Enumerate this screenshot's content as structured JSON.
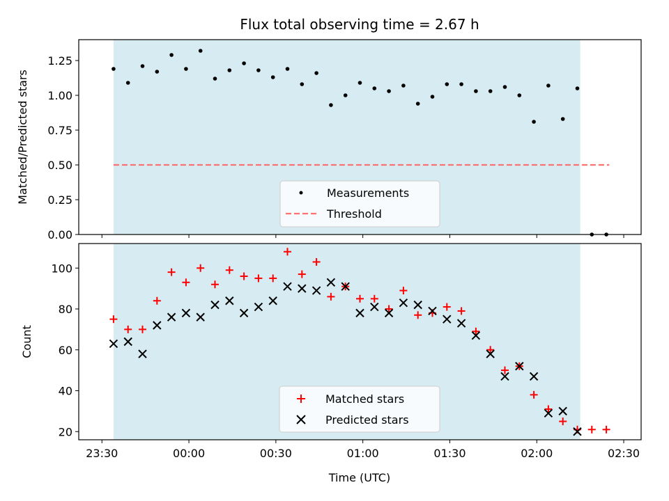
{
  "chart_data": [
    {
      "type": "scatter",
      "title": "Flux total observing time = 2.67 h",
      "ylabel": "Matched/Predicted stars",
      "xlabel": "",
      "ylim": [
        0,
        1.4
      ],
      "yticks": [
        "0.00",
        "0.25",
        "0.50",
        "0.75",
        "1.00",
        "1.25"
      ],
      "shaded_span": {
        "from": "23:34",
        "to": "02:15",
        "color": "#add8e6"
      },
      "threshold": {
        "name": "Threshold",
        "value": 0.5,
        "from": "23:34",
        "to": "02:25",
        "color": "#ff7070"
      },
      "legend": [
        "Measurements",
        "Threshold"
      ],
      "legend_position": "lower center",
      "series": [
        {
          "name": "Measurements",
          "x": [
            "23:34",
            "23:39",
            "23:44",
            "23:49",
            "23:54",
            "23:59",
            "00:04",
            "00:09",
            "00:14",
            "00:19",
            "00:24",
            "00:29",
            "00:34",
            "00:39",
            "00:44",
            "00:49",
            "00:54",
            "00:59",
            "01:04",
            "01:09",
            "01:14",
            "01:19",
            "01:24",
            "01:29",
            "01:34",
            "01:39",
            "01:44",
            "01:49",
            "01:54",
            "01:59",
            "02:04",
            "02:09",
            "02:14",
            "02:19",
            "02:24"
          ],
          "y": [
            1.19,
            1.09,
            1.21,
            1.17,
            1.29,
            1.19,
            1.32,
            1.12,
            1.18,
            1.23,
            1.18,
            1.13,
            1.19,
            1.08,
            1.16,
            0.93,
            1.0,
            1.09,
            1.05,
            1.03,
            1.07,
            0.94,
            0.99,
            1.08,
            1.08,
            1.03,
            1.03,
            1.06,
            1.0,
            0.81,
            1.07,
            0.83,
            1.05,
            0.0,
            0.0
          ]
        }
      ]
    },
    {
      "type": "scatter",
      "title": "",
      "ylabel": "Count",
      "xlabel": "Time (UTC)",
      "ylim": [
        16,
        112
      ],
      "yticks": [
        "20",
        "40",
        "60",
        "80",
        "100"
      ],
      "xticks": [
        "23:30",
        "00:00",
        "00:30",
        "01:00",
        "01:30",
        "02:00",
        "02:30"
      ],
      "shaded_span": {
        "from": "23:34",
        "to": "02:15",
        "color": "#add8e6"
      },
      "legend": [
        "Matched stars",
        "Predicted stars"
      ],
      "legend_position": "lower center",
      "series": [
        {
          "name": "Matched stars",
          "marker": "+",
          "color": "#ff0000",
          "x": [
            "23:34",
            "23:39",
            "23:44",
            "23:49",
            "23:54",
            "23:59",
            "00:04",
            "00:09",
            "00:14",
            "00:19",
            "00:24",
            "00:29",
            "00:34",
            "00:39",
            "00:44",
            "00:49",
            "00:54",
            "00:59",
            "01:04",
            "01:09",
            "01:14",
            "01:19",
            "01:24",
            "01:29",
            "01:34",
            "01:39",
            "01:44",
            "01:49",
            "01:54",
            "01:59",
            "02:04",
            "02:09",
            "02:14",
            "02:19",
            "02:24"
          ],
          "y": [
            75,
            70,
            70,
            84,
            98,
            93,
            100,
            92,
            99,
            96,
            95,
            95,
            108,
            97,
            103,
            86,
            91,
            85,
            85,
            80,
            89,
            77,
            78,
            81,
            79,
            69,
            60,
            50,
            52,
            38,
            31,
            25,
            21,
            21,
            21
          ]
        },
        {
          "name": "Predicted stars",
          "marker": "x",
          "color": "#000000",
          "x": [
            "23:34",
            "23:39",
            "23:44",
            "23:49",
            "23:54",
            "23:59",
            "00:04",
            "00:09",
            "00:14",
            "00:19",
            "00:24",
            "00:29",
            "00:34",
            "00:39",
            "00:44",
            "00:49",
            "00:54",
            "00:59",
            "01:04",
            "01:09",
            "01:14",
            "01:19",
            "01:24",
            "01:29",
            "01:34",
            "01:39",
            "01:44",
            "01:49",
            "01:54",
            "01:59",
            "02:04",
            "02:09",
            "02:14"
          ],
          "y": [
            63,
            64,
            58,
            72,
            76,
            78,
            76,
            82,
            84,
            78,
            81,
            84,
            91,
            90,
            89,
            93,
            91,
            78,
            81,
            78,
            83,
            82,
            79,
            75,
            73,
            67,
            58,
            47,
            52,
            47,
            29,
            30,
            20
          ]
        }
      ]
    }
  ]
}
